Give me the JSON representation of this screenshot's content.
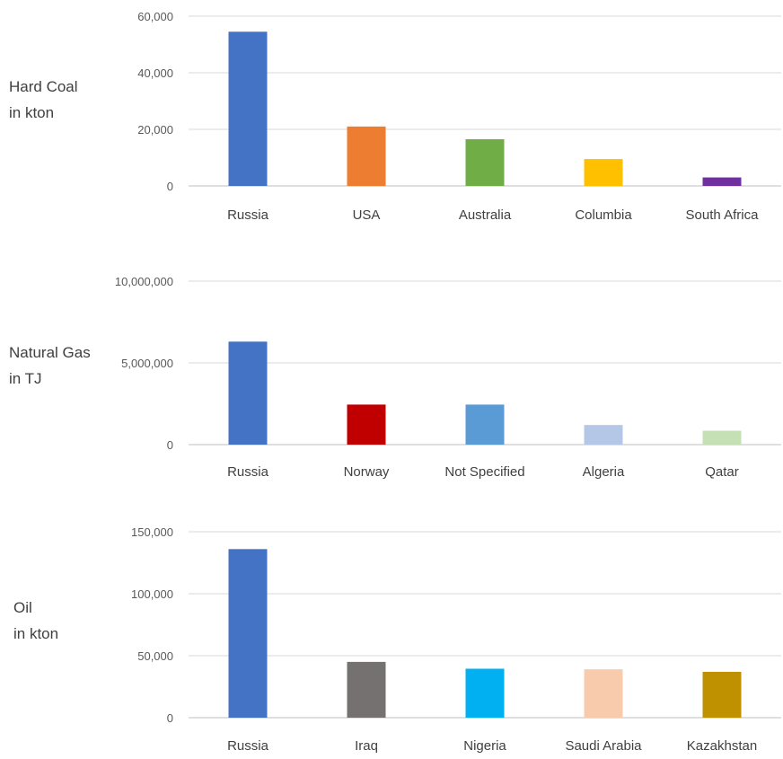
{
  "chart_data": [
    {
      "type": "bar",
      "ylabel_lines": [
        "Hard Coal",
        "in kton"
      ],
      "categories": [
        "Russia",
        "USA",
        "Australia",
        "Columbia",
        "South Africa"
      ],
      "values": [
        54500,
        21000,
        16500,
        9500,
        3000
      ],
      "colors": [
        "#4472c4",
        "#ed7d31",
        "#70ad47",
        "#ffc000",
        "#7030a0"
      ],
      "ylim": [
        0,
        60000
      ],
      "yticks": [
        0,
        20000,
        40000,
        60000
      ],
      "ytick_labels": [
        "0",
        "20,000",
        "40,000",
        "60,000"
      ],
      "grid": true
    },
    {
      "type": "bar",
      "ylabel_lines": [
        "Natural Gas",
        "in TJ"
      ],
      "categories": [
        "Russia",
        "Norway",
        "Not Specified",
        "Algeria",
        "Qatar"
      ],
      "values": [
        6300000,
        2450000,
        2450000,
        1200000,
        850000
      ],
      "colors": [
        "#4472c4",
        "#c00000",
        "#5b9bd5",
        "#b4c7e7",
        "#c5e0b4"
      ],
      "ylim": [
        0,
        10000000
      ],
      "yticks": [
        0,
        5000000,
        10000000
      ],
      "ytick_labels": [
        "0",
        "5,000,000",
        "10,000,000"
      ],
      "grid": true
    },
    {
      "type": "bar",
      "ylabel_lines": [
        "Oil",
        "in kton"
      ],
      "categories": [
        "Russia",
        "Iraq",
        "Nigeria",
        "Saudi Arabia",
        "Kazakhstan"
      ],
      "values": [
        136000,
        45000,
        39500,
        39000,
        37000
      ],
      "colors": [
        "#4472c4",
        "#767171",
        "#00b0f0",
        "#f8cbad",
        "#bf9000"
      ],
      "ylim": [
        0,
        150000
      ],
      "yticks": [
        0,
        50000,
        100000,
        150000
      ],
      "ytick_labels": [
        "0",
        "50,000",
        "100,000",
        "150,000"
      ],
      "grid": true
    }
  ]
}
